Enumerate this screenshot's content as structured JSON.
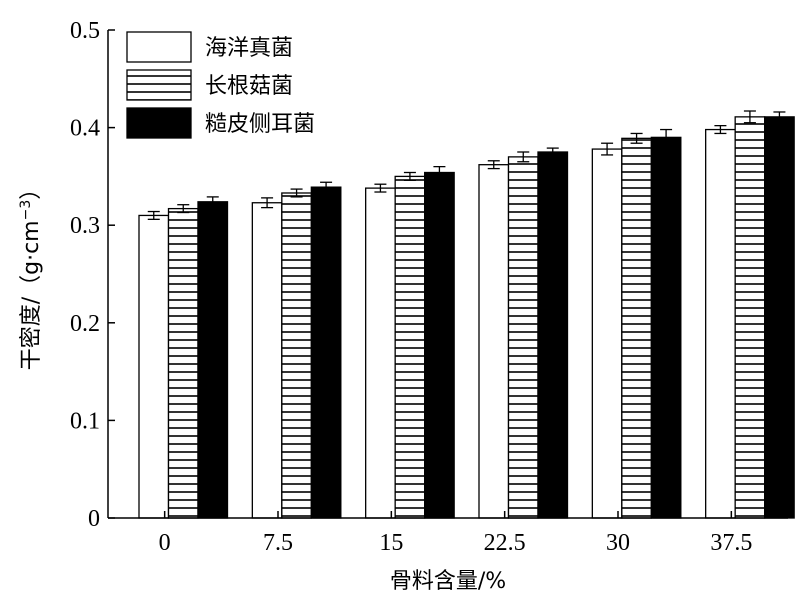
{
  "chart_data": {
    "type": "bar",
    "xlabel": "骨料含量/%",
    "ylabel": "干密度/（g·cm",
    "ylabel_sup": "−3",
    "ylabel_close": "）",
    "categories": [
      "0",
      "7.5",
      "15",
      "22.5",
      "30",
      "37.5"
    ],
    "ylim": [
      0,
      0.5
    ],
    "yticks": [
      "0",
      "0.1",
      "0.2",
      "0.3",
      "0.4",
      "0.5"
    ],
    "legend_position": "top-left",
    "series": [
      {
        "name": "海洋真菌",
        "pattern": "open",
        "values": [
          0.31,
          0.323,
          0.338,
          0.362,
          0.378,
          0.398
        ],
        "errors": [
          0.004,
          0.005,
          0.004,
          0.004,
          0.006,
          0.004
        ]
      },
      {
        "name": "长根菇菌",
        "pattern": "horizontal-lines",
        "values": [
          0.317,
          0.333,
          0.35,
          0.37,
          0.389,
          0.411
        ],
        "errors": [
          0.004,
          0.004,
          0.004,
          0.005,
          0.005,
          0.006
        ]
      },
      {
        "name": "糙皮侧耳菌",
        "pattern": "solid",
        "values": [
          0.324,
          0.339,
          0.354,
          0.375,
          0.39,
          0.411
        ],
        "errors": [
          0.005,
          0.005,
          0.006,
          0.004,
          0.008,
          0.005
        ]
      }
    ]
  }
}
